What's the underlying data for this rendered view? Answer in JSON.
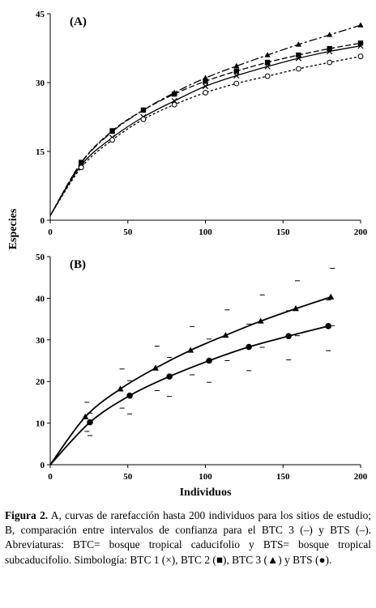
{
  "chart_data": [
    {
      "type": "line",
      "panel_label": "(A)",
      "xlabel": "",
      "ylabel": "Especies",
      "xlim": [
        0,
        200
      ],
      "ylim": [
        0,
        45
      ],
      "xticks": [
        "0",
        "50",
        "100",
        "150",
        "200"
      ],
      "yticks": [
        "0",
        "15",
        "30",
        "45"
      ],
      "grid": false,
      "series": [
        {
          "marker": "x",
          "line": "solid",
          "x": [
            0,
            20,
            40,
            60,
            80,
            100,
            120,
            140,
            160,
            180,
            200
          ],
          "y": [
            1,
            12,
            18,
            22.5,
            26,
            29.2,
            31.5,
            33.5,
            35.3,
            36.8,
            38
          ]
        },
        {
          "marker": "square",
          "line": "dash",
          "x": [
            0,
            20,
            40,
            60,
            80,
            100,
            120,
            140,
            160,
            180,
            200
          ],
          "y": [
            1,
            12.6,
            19.5,
            24,
            27.5,
            30.3,
            32.5,
            34.4,
            36,
            37.4,
            38.6
          ]
        },
        {
          "marker": "triangle",
          "line": "longdash",
          "x": [
            0,
            20,
            40,
            60,
            80,
            100,
            120,
            140,
            160,
            180,
            200
          ],
          "y": [
            1,
            12.5,
            19.3,
            24,
            27.8,
            31,
            33.6,
            36,
            38.3,
            40.4,
            42.5
          ]
        },
        {
          "marker": "circle",
          "line": "shortdash",
          "x": [
            0,
            20,
            40,
            60,
            80,
            100,
            120,
            140,
            160,
            180,
            200
          ],
          "y": [
            1,
            11.5,
            17.5,
            22,
            25.2,
            27.8,
            29.8,
            31.4,
            33,
            34.4,
            35.7
          ]
        }
      ]
    },
    {
      "type": "line",
      "panel_label": "(B)",
      "xlabel": "Individuos",
      "ylabel": "",
      "xlim": [
        0,
        200
      ],
      "ylim": [
        0,
        50
      ],
      "xticks": [
        "0",
        "50",
        "100",
        "150",
        "200"
      ],
      "yticks": [
        "0",
        "10",
        "20",
        "30",
        "40",
        "50"
      ],
      "grid": false,
      "series": [
        {
          "marker": "triangle",
          "line": "solid",
          "x": [
            0,
            22.6,
            45.2,
            67.8,
            90.4,
            113,
            135.6,
            158.2,
            180.8
          ],
          "y": [
            0,
            11.5,
            18.2,
            23.2,
            27.5,
            31.1,
            34.5,
            37.5,
            40.3
          ],
          "ci_upper": [
            null,
            15,
            23,
            28.5,
            33.2,
            37.2,
            40.8,
            44.2,
            47.2
          ],
          "ci_lower": [
            null,
            8,
            13.6,
            17.8,
            21.6,
            25,
            28.2,
            31,
            33.4
          ]
        },
        {
          "marker": "circle",
          "line": "solid",
          "x": [
            0,
            25.6,
            51.2,
            76.8,
            102.4,
            128,
            153.6,
            179.2
          ],
          "y": [
            0,
            10.2,
            16.6,
            21.2,
            25,
            28.3,
            30.9,
            33.3
          ],
          "ci_upper": [
            null,
            12.4,
            20.2,
            25.8,
            30.2,
            33.8,
            37,
            39.6
          ],
          "ci_lower": [
            null,
            7,
            12.2,
            16.4,
            19.8,
            22.6,
            25.2,
            27.4
          ]
        }
      ]
    }
  ],
  "caption": {
    "figure_label": "Figura 2.",
    "text": " A, curvas de rarefacción hasta 200 individuos para los sitios de estudio; B, comparación entre intervalos de confianza para el BTC 3 (–) y BTS (–). Abreviaturas: BTC= bosque tropical caducifolio y BTS= bosque tropical subcaducifolio. Simbología: BTC 1 (×), BTC 2 (■), BTC 3 (▲) y BTS (●)."
  }
}
